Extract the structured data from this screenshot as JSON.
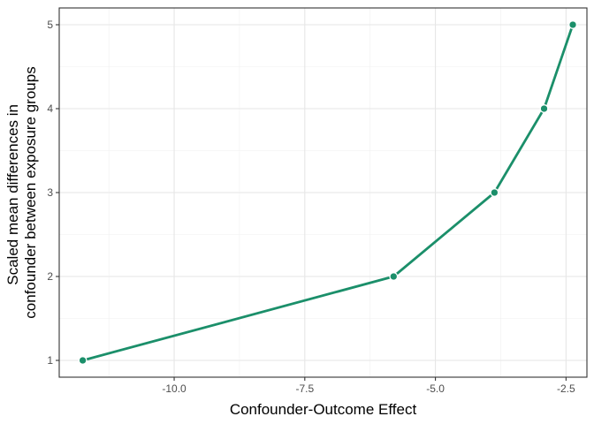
{
  "chart_data": {
    "type": "line",
    "title": "",
    "xlabel": "Confounder-Outcome Effect",
    "ylabel_lines": [
      "Scaled mean differences in",
      "confounder between exposure groups"
    ],
    "xlim": [
      -12.2,
      -2.1
    ],
    "ylim": [
      0.8,
      5.2
    ],
    "x_ticks": [
      -10.0,
      -7.5,
      -5.0,
      -2.5
    ],
    "x_tick_labels": [
      "-10.0",
      "-7.5",
      "-5.0",
      "-2.5"
    ],
    "y_ticks": [
      1,
      2,
      3,
      4,
      5
    ],
    "y_tick_labels": [
      "1",
      "2",
      "3",
      "4",
      "5"
    ],
    "grid": true,
    "legend": "none",
    "series": [
      {
        "x": [
          -11.75,
          -5.8,
          -3.87,
          -2.92,
          -2.37
        ],
        "y": [
          1,
          2,
          3,
          4,
          5
        ],
        "color": "#1b8f6a"
      }
    ]
  }
}
